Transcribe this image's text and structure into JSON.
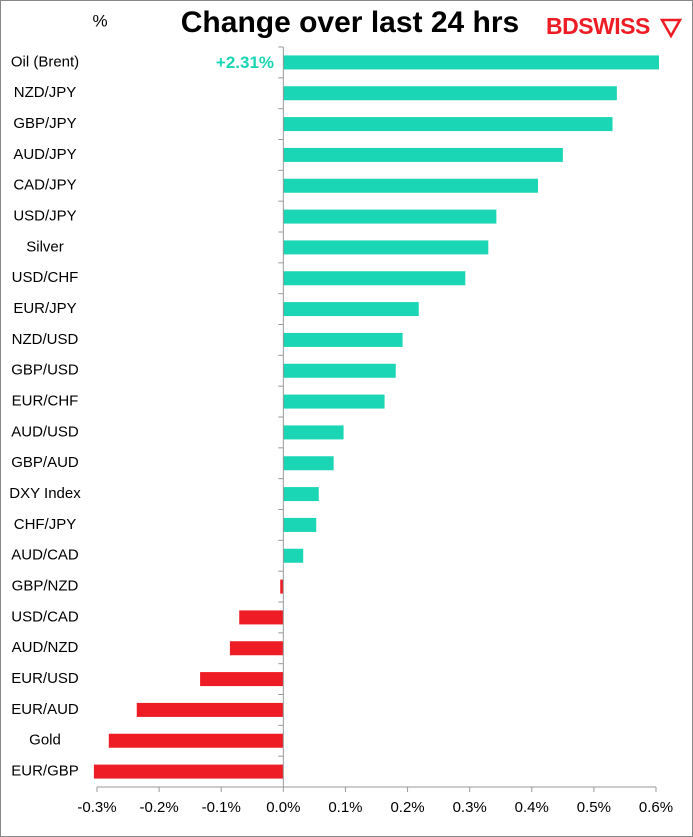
{
  "chart_data": {
    "type": "hbar",
    "title": "Change over last 24 hrs",
    "unit_label": "%",
    "logo": "BDSWISS",
    "categories": [
      "Oil (Brent)",
      "NZD/JPY",
      "GBP/JPY",
      "AUD/JPY",
      "CAD/JPY",
      "USD/JPY",
      "Silver",
      "USD/CHF",
      "EUR/JPY",
      "NZD/USD",
      "GBP/USD",
      "EUR/CHF",
      "AUD/USD",
      "GBP/AUD",
      "DXY Index",
      "CHF/JPY",
      "AUD/CAD",
      "GBP/NZD",
      "USD/CAD",
      "AUD/NZD",
      "EUR/USD",
      "EUR/AUD",
      "Gold",
      "EUR/GBP"
    ],
    "values": [
      2.31,
      0.537,
      0.53,
      0.45,
      0.41,
      0.343,
      0.33,
      0.293,
      0.218,
      0.192,
      0.181,
      0.163,
      0.097,
      0.081,
      0.057,
      0.053,
      0.032,
      -0.005,
      -0.071,
      -0.086,
      -0.134,
      -0.236,
      -0.281,
      -0.305
    ],
    "value_labels": [
      "+2.31%",
      null,
      null,
      null,
      null,
      null,
      null,
      null,
      null,
      null,
      null,
      null,
      null,
      null,
      null,
      null,
      null,
      null,
      null,
      null,
      null,
      null,
      null,
      null
    ],
    "color_positive": "#1ad6b4",
    "color_negative": "#ee1c25",
    "label_color": "#1ad6b4",
    "xlim": [
      -0.3,
      0.6
    ],
    "xticks": [
      {
        "value": -0.3,
        "label": "-0.3%"
      },
      {
        "value": -0.2,
        "label": "-0.2%"
      },
      {
        "value": -0.1,
        "label": "-0.1%"
      },
      {
        "value": 0,
        "label": "0.0%"
      },
      {
        "value": 0.1,
        "label": "0.1%"
      },
      {
        "value": 0.2,
        "label": "0.2%"
      },
      {
        "value": 0.3,
        "label": "0.3%"
      },
      {
        "value": 0.4,
        "label": "0.4%"
      },
      {
        "value": 0.5,
        "label": "0.5%"
      },
      {
        "value": 0.6,
        "label": "0.6%"
      }
    ],
    "grid": false
  }
}
